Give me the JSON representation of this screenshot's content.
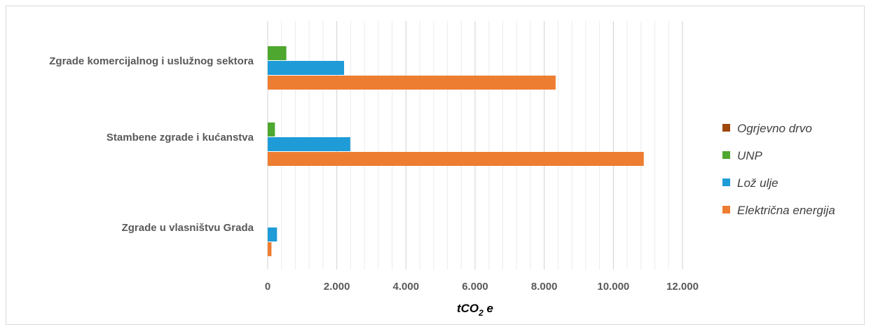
{
  "chart_data": {
    "type": "bar",
    "orientation": "horizontal",
    "categories": [
      "Zgrade komercijalnog i uslužnog sektora",
      "Stambene zgrade i kućanstva",
      "Zgrade u vlasništvu Grada"
    ],
    "series": [
      {
        "name": "Ogrjevno drvo",
        "color": "#9E480E",
        "values": [
          0,
          0,
          0
        ]
      },
      {
        "name": "UNP",
        "color": "#4EA72E",
        "values": [
          540,
          210,
          0
        ]
      },
      {
        "name": "Lož ulje",
        "color": "#1F9BD7",
        "values": [
          2210,
          2390,
          270
        ]
      },
      {
        "name": "Električna energija",
        "color": "#ED7D31",
        "values": [
          8330,
          10880,
          110
        ]
      }
    ],
    "xlabel": {
      "main": "tCO",
      "sub": "2",
      "suffix": " e"
    },
    "xlim": [
      0,
      12000
    ],
    "xticks": [
      {
        "value": 0,
        "label": "0"
      },
      {
        "value": 2000,
        "label": "2.000"
      },
      {
        "value": 4000,
        "label": "4.000"
      },
      {
        "value": 6000,
        "label": "6.000"
      },
      {
        "value": 8000,
        "label": "8.000"
      },
      {
        "value": 10000,
        "label": "10.000"
      },
      {
        "value": 12000,
        "label": "12.000"
      }
    ],
    "minor_grid_step": 400,
    "grid": true,
    "legend_position": "right",
    "legend_order": [
      "Ogrjevno drvo",
      "UNP",
      "Lož ulje",
      "Električna energija"
    ]
  }
}
